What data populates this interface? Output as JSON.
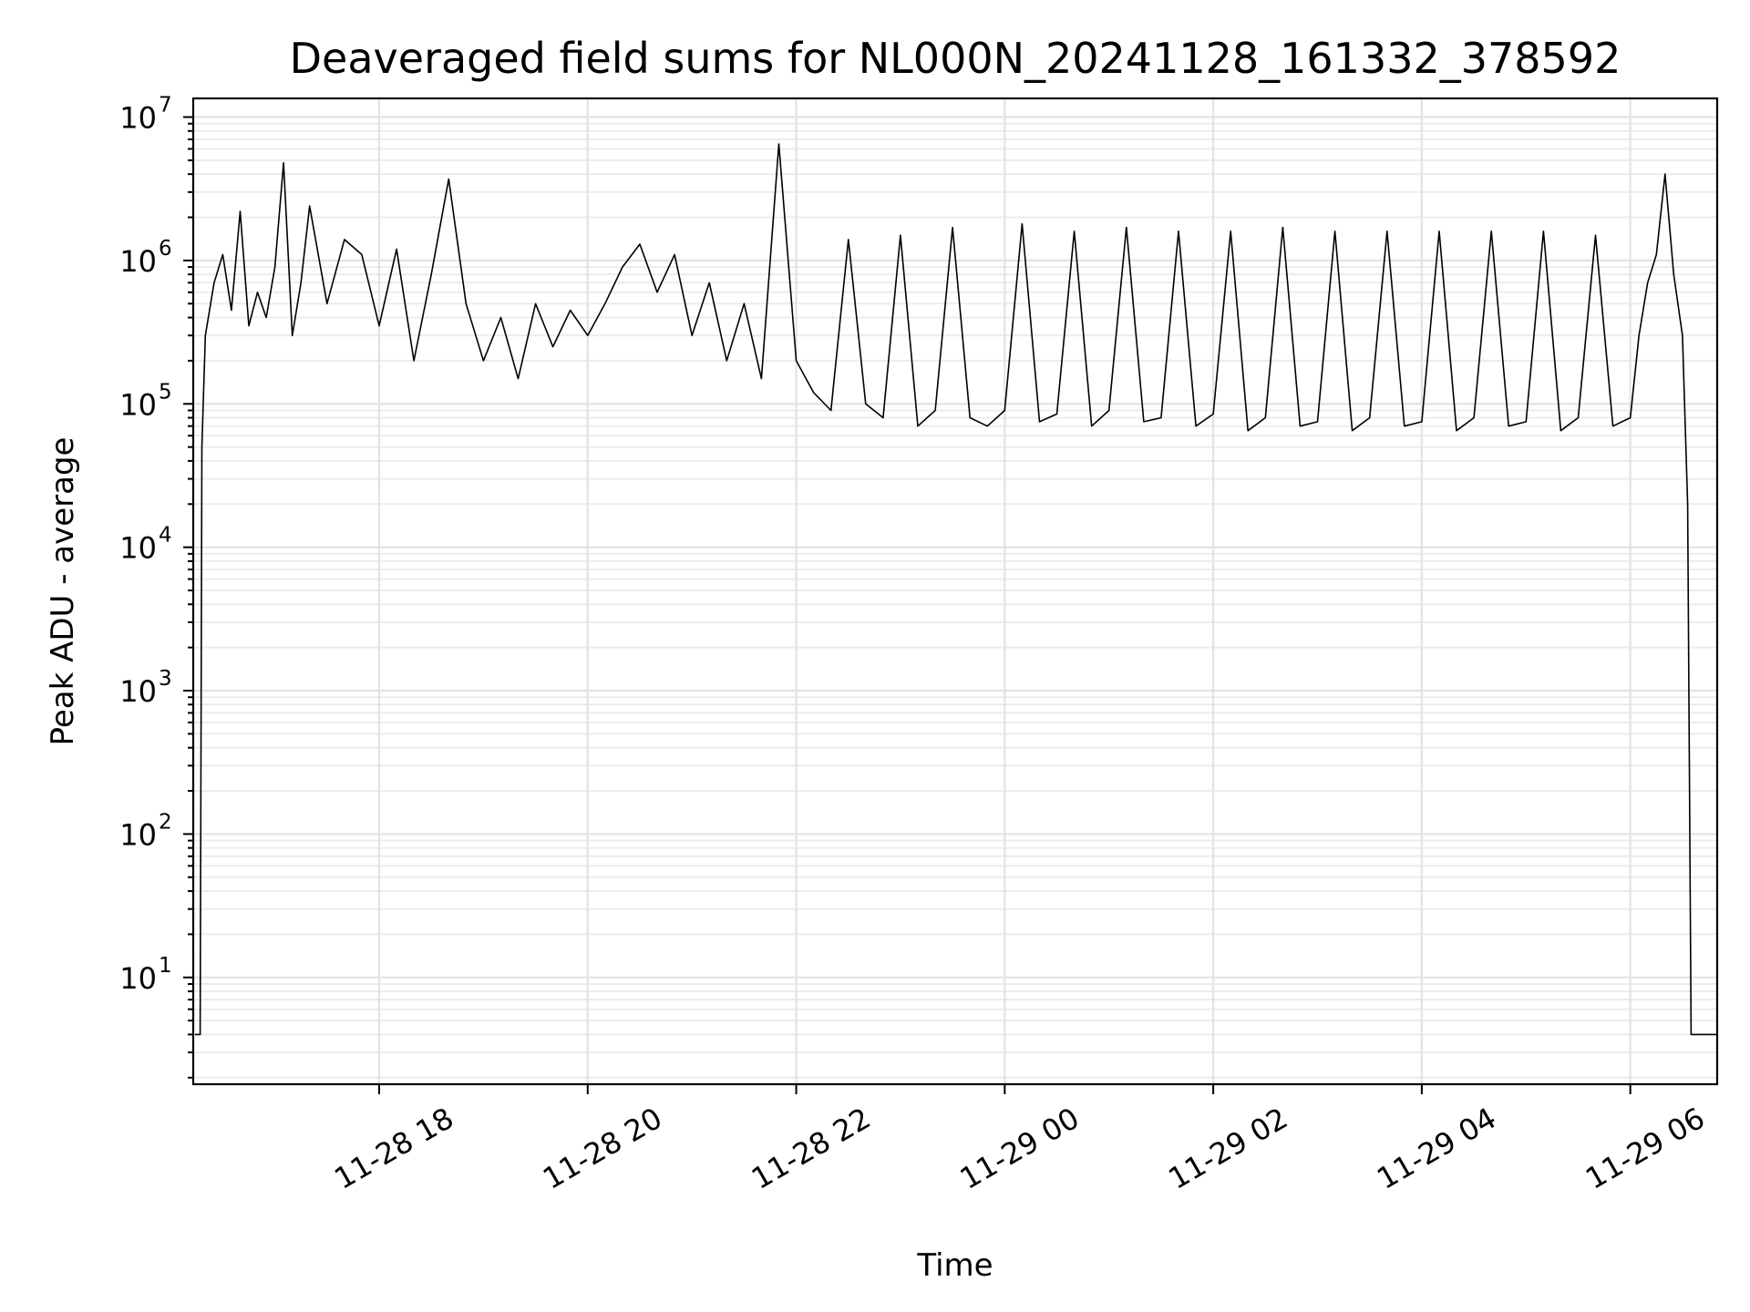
{
  "chart_data": {
    "type": "line",
    "title": "Deaveraged field sums for NL000N_20241128_161332_378592",
    "xlabel": "Time",
    "ylabel": "Peak ADU - average",
    "yscale": "log",
    "grid": "major and minor",
    "legend": "none",
    "line_color": "#000000",
    "xlim": [
      "2024-11-28 16:13",
      "2024-11-29 06:50"
    ],
    "ylim": [
      1.8,
      13500000
    ],
    "x_ticks": [
      {
        "value": "2024-11-28 18:00",
        "label": "11-28 18"
      },
      {
        "value": "2024-11-28 20:00",
        "label": "11-28 20"
      },
      {
        "value": "2024-11-28 22:00",
        "label": "11-28 22"
      },
      {
        "value": "2024-11-29 00:00",
        "label": "11-29 00"
      },
      {
        "value": "2024-11-29 02:00",
        "label": "11-29 02"
      },
      {
        "value": "2024-11-29 04:00",
        "label": "11-29 04"
      },
      {
        "value": "2024-11-29 06:00",
        "label": "11-29 06"
      }
    ],
    "y_ticks": [
      {
        "value": 10,
        "base": "10",
        "exp": "1"
      },
      {
        "value": 100,
        "base": "10",
        "exp": "2"
      },
      {
        "value": 1000,
        "base": "10",
        "exp": "3"
      },
      {
        "value": 10000,
        "base": "10",
        "exp": "4"
      },
      {
        "value": 100000,
        "base": "10",
        "exp": "5"
      },
      {
        "value": 1000000,
        "base": "10",
        "exp": "6"
      },
      {
        "value": 10000000,
        "base": "10",
        "exp": "7"
      }
    ],
    "series": [
      {
        "points": [
          [
            "2024-11-28 16:14",
            4
          ],
          [
            "2024-11-28 16:17",
            4
          ],
          [
            "2024-11-28 16:18",
            50000
          ],
          [
            "2024-11-28 16:20",
            300000
          ],
          [
            "2024-11-28 16:25",
            700000
          ],
          [
            "2024-11-28 16:30",
            1100000
          ],
          [
            "2024-11-28 16:35",
            450000
          ],
          [
            "2024-11-28 16:40",
            2200000
          ],
          [
            "2024-11-28 16:45",
            350000
          ],
          [
            "2024-11-28 16:50",
            600000
          ],
          [
            "2024-11-28 16:55",
            400000
          ],
          [
            "2024-11-28 17:00",
            900000
          ],
          [
            "2024-11-28 17:05",
            4800000
          ],
          [
            "2024-11-28 17:10",
            300000
          ],
          [
            "2024-11-28 17:15",
            700000
          ],
          [
            "2024-11-28 17:20",
            2400000
          ],
          [
            "2024-11-28 17:30",
            500000
          ],
          [
            "2024-11-28 17:40",
            1400000
          ],
          [
            "2024-11-28 17:50",
            1100000
          ],
          [
            "2024-11-28 18:00",
            350000
          ],
          [
            "2024-11-28 18:10",
            1200000
          ],
          [
            "2024-11-28 18:20",
            200000
          ],
          [
            "2024-11-28 18:30",
            800000
          ],
          [
            "2024-11-28 18:40",
            3700000
          ],
          [
            "2024-11-28 18:50",
            500000
          ],
          [
            "2024-11-28 19:00",
            200000
          ],
          [
            "2024-11-28 19:10",
            400000
          ],
          [
            "2024-11-28 19:20",
            150000
          ],
          [
            "2024-11-28 19:30",
            500000
          ],
          [
            "2024-11-28 19:40",
            250000
          ],
          [
            "2024-11-28 19:50",
            450000
          ],
          [
            "2024-11-28 20:00",
            300000
          ],
          [
            "2024-11-28 20:10",
            500000
          ],
          [
            "2024-11-28 20:20",
            900000
          ],
          [
            "2024-11-28 20:30",
            1300000
          ],
          [
            "2024-11-28 20:40",
            600000
          ],
          [
            "2024-11-28 20:50",
            1100000
          ],
          [
            "2024-11-28 21:00",
            300000
          ],
          [
            "2024-11-28 21:10",
            700000
          ],
          [
            "2024-11-28 21:20",
            200000
          ],
          [
            "2024-11-28 21:30",
            500000
          ],
          [
            "2024-11-28 21:40",
            150000
          ],
          [
            "2024-11-28 21:50",
            6500000
          ],
          [
            "2024-11-28 22:00",
            200000
          ],
          [
            "2024-11-28 22:10",
            120000
          ],
          [
            "2024-11-28 22:20",
            90000
          ],
          [
            "2024-11-28 22:30",
            1400000
          ],
          [
            "2024-11-28 22:40",
            100000
          ],
          [
            "2024-11-28 22:50",
            80000
          ],
          [
            "2024-11-28 23:00",
            1500000
          ],
          [
            "2024-11-28 23:10",
            70000
          ],
          [
            "2024-11-28 23:20",
            90000
          ],
          [
            "2024-11-28 23:30",
            1700000
          ],
          [
            "2024-11-28 23:40",
            80000
          ],
          [
            "2024-11-28 23:50",
            70000
          ],
          [
            "2024-11-29 00:00",
            90000
          ],
          [
            "2024-11-29 00:10",
            1800000
          ],
          [
            "2024-11-29 00:20",
            75000
          ],
          [
            "2024-11-29 00:30",
            85000
          ],
          [
            "2024-11-29 00:40",
            1600000
          ],
          [
            "2024-11-29 00:50",
            70000
          ],
          [
            "2024-11-29 01:00",
            90000
          ],
          [
            "2024-11-29 01:10",
            1700000
          ],
          [
            "2024-11-29 01:20",
            75000
          ],
          [
            "2024-11-29 01:30",
            80000
          ],
          [
            "2024-11-29 01:40",
            1600000
          ],
          [
            "2024-11-29 01:50",
            70000
          ],
          [
            "2024-11-29 02:00",
            85000
          ],
          [
            "2024-11-29 02:10",
            1600000
          ],
          [
            "2024-11-29 02:20",
            65000
          ],
          [
            "2024-11-29 02:30",
            80000
          ],
          [
            "2024-11-29 02:40",
            1700000
          ],
          [
            "2024-11-29 02:50",
            70000
          ],
          [
            "2024-11-29 03:00",
            75000
          ],
          [
            "2024-11-29 03:10",
            1600000
          ],
          [
            "2024-11-29 03:20",
            65000
          ],
          [
            "2024-11-29 03:30",
            80000
          ],
          [
            "2024-11-29 03:40",
            1600000
          ],
          [
            "2024-11-29 03:50",
            70000
          ],
          [
            "2024-11-29 04:00",
            75000
          ],
          [
            "2024-11-29 04:10",
            1600000
          ],
          [
            "2024-11-29 04:20",
            65000
          ],
          [
            "2024-11-29 04:30",
            80000
          ],
          [
            "2024-11-29 04:40",
            1600000
          ],
          [
            "2024-11-29 04:50",
            70000
          ],
          [
            "2024-11-29 05:00",
            75000
          ],
          [
            "2024-11-29 05:10",
            1600000
          ],
          [
            "2024-11-29 05:20",
            65000
          ],
          [
            "2024-11-29 05:30",
            80000
          ],
          [
            "2024-11-29 05:40",
            1500000
          ],
          [
            "2024-11-29 05:50",
            70000
          ],
          [
            "2024-11-29 06:00",
            80000
          ],
          [
            "2024-11-29 06:05",
            300000
          ],
          [
            "2024-11-29 06:10",
            700000
          ],
          [
            "2024-11-29 06:15",
            1100000
          ],
          [
            "2024-11-29 06:20",
            4000000
          ],
          [
            "2024-11-29 06:25",
            800000
          ],
          [
            "2024-11-29 06:30",
            300000
          ],
          [
            "2024-11-29 06:33",
            20000
          ],
          [
            "2024-11-29 06:35",
            4
          ],
          [
            "2024-11-29 06:50",
            4
          ]
        ]
      }
    ]
  }
}
